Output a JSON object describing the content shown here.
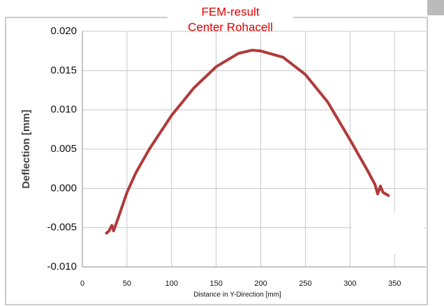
{
  "chart_data": {
    "type": "line",
    "title": "FEM-result",
    "subtitle": "Center Rohacell",
    "x_label": "Distance in Y-Direction   [mm]",
    "y_label": "Deflection   [mm]",
    "x": [
      27,
      30,
      33,
      35,
      40,
      50,
      60,
      75,
      100,
      125,
      150,
      175,
      190,
      200,
      225,
      250,
      275,
      300,
      320,
      328,
      331,
      334,
      337,
      343
    ],
    "series": [
      {
        "color": "#b03a3a",
        "values": [
          -0.0057,
          -0.0054,
          -0.0047,
          -0.0054,
          -0.0038,
          -0.0005,
          0.002,
          0.005,
          0.0093,
          0.0128,
          0.0155,
          0.0172,
          0.0176,
          0.0175,
          0.0167,
          0.0145,
          0.011,
          0.0062,
          0.0022,
          0.0005,
          -0.0007,
          0.0003,
          -0.0005,
          -0.0009
        ]
      }
    ],
    "xlim": [
      0,
      385
    ],
    "xticks": [
      0,
      50,
      100,
      150,
      200,
      250,
      300,
      350
    ],
    "ylim": [
      -0.01,
      0.02
    ],
    "yticks": [
      {
        "value": -0.01,
        "label": "-0.010"
      },
      {
        "value": -0.005,
        "label": "-0.005"
      },
      {
        "value": 0,
        "label": "0.000"
      },
      {
        "value": 0.005,
        "label": "0.005"
      },
      {
        "value": 0.01,
        "label": "0.010"
      },
      {
        "value": 0.015,
        "label": "0.015"
      },
      {
        "value": 0.02,
        "label": "0.020"
      }
    ],
    "grid": true
  }
}
